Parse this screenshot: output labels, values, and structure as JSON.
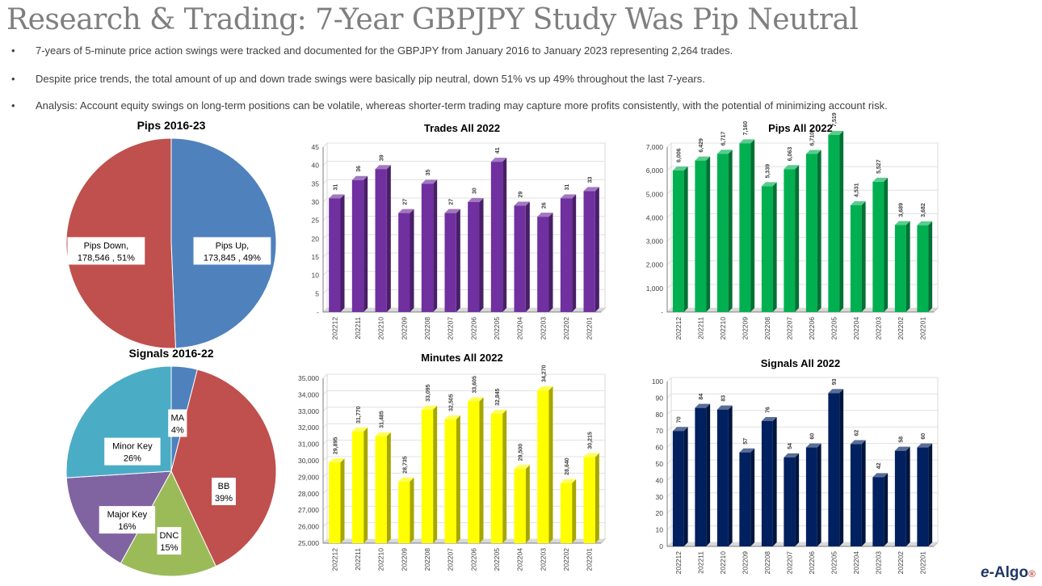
{
  "title": "Research & Trading: 7-Year GBPJPY Study Was Pip Neutral",
  "bullets": [
    "7-years of 5-minute price action swings were tracked and documented for the GBPJPY from January 2016 to January 2023 representing 2,264 trades.",
    "Despite price trends, the total amount of up and down trade swings were basically pip neutral, down 51% vs up 49% throughout the last 7-years.",
    "Analysis: Account equity swings on long-term positions can be volatile, whereas shorter-term trading may capture more profits consistently, with the potential of minimizing account risk."
  ],
  "bullet_symbol": "•",
  "logo": {
    "prefix": "e",
    "text": "-Algo",
    "mark": "®"
  },
  "chart_data": [
    {
      "id": "pips_pie",
      "type": "pie",
      "title": "Pips 2016-23",
      "slices": [
        {
          "label": "Pips Up,",
          "value": 173845,
          "value_label": "173,845 , 49%",
          "color": "#4f81bd"
        },
        {
          "label": "Pips Down,",
          "value": 178546,
          "value_label": "178,546 , 51%",
          "color": "#c0504d"
        }
      ]
    },
    {
      "id": "signals_pie",
      "type": "pie",
      "title": "Signals 2016-22",
      "slices": [
        {
          "label": "MA",
          "value": 4,
          "value_label": "4%",
          "color": "#4f81bd"
        },
        {
          "label": "BB",
          "value": 39,
          "value_label": "39%",
          "color": "#c0504d"
        },
        {
          "label": "DNC",
          "value": 15,
          "value_label": "15%",
          "color": "#9bbb59"
        },
        {
          "label": "Major Key",
          "value": 16,
          "value_label": "16%",
          "color": "#8064a2"
        },
        {
          "label": "Minor Key",
          "value": 26,
          "value_label": "26%",
          "color": "#4bacc6"
        }
      ]
    },
    {
      "id": "trades_bar",
      "type": "bar",
      "title": "Trades All 2022",
      "categories": [
        "202212",
        "202211",
        "202210",
        "202209",
        "202208",
        "202207",
        "202206",
        "202205",
        "202204",
        "202203",
        "202202",
        "202201"
      ],
      "values": [
        31,
        36,
        39,
        27,
        35,
        27,
        30,
        41,
        29,
        26,
        31,
        33
      ],
      "value_labels": [
        "31",
        "36",
        "39",
        "27",
        "35",
        "27",
        "30",
        "41",
        "29",
        "26",
        "31",
        "33"
      ],
      "ylim": [
        0,
        45
      ],
      "yticks": [
        "-",
        "5",
        "10",
        "15",
        "20",
        "25",
        "30",
        "35",
        "40",
        "45"
      ],
      "color": "#7030a0"
    },
    {
      "id": "pips_bar",
      "type": "bar",
      "title": "Pips All 2022",
      "categories": [
        "202212",
        "202211",
        "202210",
        "202209",
        "202208",
        "202207",
        "202206",
        "202205",
        "202204",
        "202203",
        "202202",
        "202201"
      ],
      "values": [
        6006,
        6429,
        6717,
        7160,
        5339,
        6063,
        6710,
        7519,
        4531,
        5527,
        3689,
        3682
      ],
      "value_labels": [
        "6,006",
        "6,429",
        "6,717",
        "7,160",
        "5,339",
        "6,063",
        "6,710",
        "7,519",
        "4,531",
        "5,527",
        "3,689",
        "3,682"
      ],
      "ylim": [
        0,
        7000
      ],
      "yticks": [
        "-",
        "1,000",
        "2,000",
        "3,000",
        "4,000",
        "5,000",
        "6,000",
        "7,000"
      ],
      "color": "#00b050"
    },
    {
      "id": "minutes_bar",
      "type": "bar",
      "title": "Minutes All 2022",
      "categories": [
        "202212",
        "202211",
        "202210",
        "202209",
        "202208",
        "202207",
        "202206",
        "202205",
        "202204",
        "202203",
        "202202",
        "202201"
      ],
      "values": [
        29895,
        31770,
        31485,
        28735,
        33095,
        32505,
        33605,
        32845,
        29500,
        34270,
        28640,
        30215
      ],
      "value_labels": [
        "29,895",
        "31,770",
        "31,485",
        "28,735",
        "33,095",
        "32,505",
        "33,605",
        "32,845",
        "29,500",
        "34,270",
        "28,640",
        "30,215"
      ],
      "ylim": [
        25000,
        35000
      ],
      "yticks": [
        "25,000",
        "26,000",
        "27,000",
        "28,000",
        "29,000",
        "30,000",
        "31,000",
        "32,000",
        "33,000",
        "34,000",
        "35,000"
      ],
      "color": "#ffff00"
    },
    {
      "id": "signals_bar",
      "type": "bar",
      "title": "Signals All 2022",
      "categories": [
        "202212",
        "202211",
        "202210",
        "202209",
        "202208",
        "202207",
        "202206",
        "202205",
        "202204",
        "202203",
        "202202",
        "202201"
      ],
      "values": [
        70,
        84,
        83,
        57,
        76,
        54,
        60,
        93,
        62,
        42,
        58,
        60
      ],
      "value_labels": [
        "70",
        "84",
        "83",
        "57",
        "76",
        "54",
        "60",
        "93",
        "62",
        "42",
        "58",
        "60"
      ],
      "ylim": [
        0,
        100
      ],
      "yticks": [
        "0",
        "10",
        "20",
        "30",
        "40",
        "50",
        "60",
        "70",
        "80",
        "90",
        "100"
      ],
      "color": "#002060"
    }
  ]
}
